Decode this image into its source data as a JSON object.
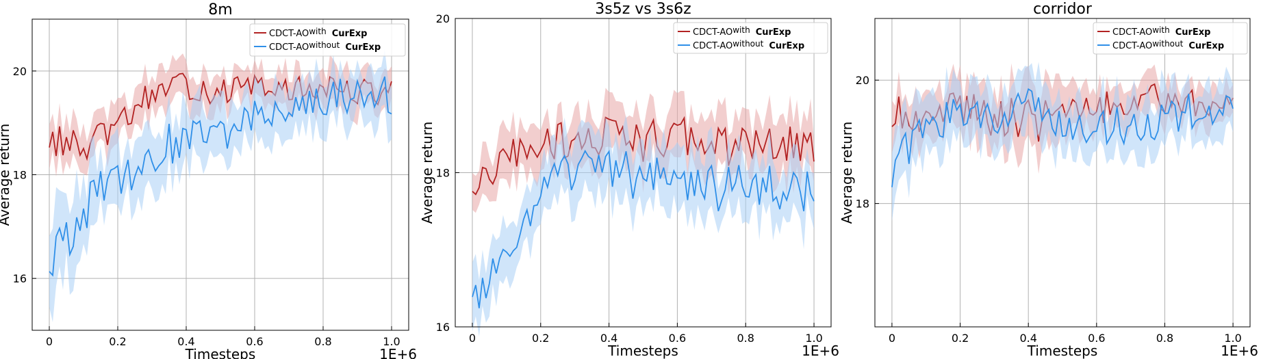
{
  "chart_data": [
    {
      "type": "line",
      "title": "8m",
      "xlabel": "Timesteps",
      "ylabel": "Average return",
      "x_multiplier_label": "1E+6",
      "xlim": [
        -0.05,
        1.05
      ],
      "ylim": [
        15.0,
        21.0
      ],
      "xticks": [
        0,
        0.2,
        0.4,
        0.6,
        0.8,
        1.0
      ],
      "xtick_labels": [
        "0",
        "0.2",
        "0.4",
        "0.6",
        "0.8",
        "1.0"
      ],
      "yticks": [
        16,
        18,
        20
      ],
      "ytick_labels": [
        "16",
        "18",
        "20"
      ],
      "grid": true,
      "legend_position": "top-right",
      "x": [
        0,
        0.1,
        0.2,
        0.3,
        0.4,
        0.5,
        0.6,
        0.7,
        0.8,
        0.9,
        1.0
      ],
      "series": [
        {
          "name": "CDCT-AOwith CurExp",
          "name_parts": [
            "CDCT-AO",
            "with",
            "CurExp"
          ],
          "color": "#b22222",
          "band_color": "#e8a5a5",
          "values": [
            18.7,
            18.5,
            18.9,
            19.6,
            19.7,
            19.6,
            19.7,
            19.6,
            19.7,
            19.6,
            19.6
          ],
          "band": [
            0.45,
            0.4,
            0.4,
            0.35,
            0.35,
            0.35,
            0.3,
            0.35,
            0.35,
            0.35,
            0.35
          ]
        },
        {
          "name": "CDCT-AOwithout CurExp",
          "name_parts": [
            "CDCT-AO",
            "without",
            "CurExp"
          ],
          "color": "#2f8fe8",
          "band_color": "#a9d0f5",
          "values": [
            16.4,
            17.3,
            17.9,
            18.4,
            18.7,
            18.7,
            19.2,
            19.2,
            19.5,
            19.6,
            19.5
          ],
          "band": [
            0.8,
            0.7,
            0.6,
            0.6,
            0.55,
            0.55,
            0.5,
            0.5,
            0.5,
            0.5,
            0.5
          ]
        }
      ]
    },
    {
      "type": "line",
      "title": "3s5z vs 3s6z",
      "xlabel": "Timesteps",
      "ylabel": "Average return",
      "x_multiplier_label": "1E+6",
      "xlim": [
        -0.05,
        1.05
      ],
      "ylim": [
        16.0,
        20.0
      ],
      "xticks": [
        0,
        0.2,
        0.4,
        0.6,
        0.8,
        1.0
      ],
      "xtick_labels": [
        "0",
        "0.2",
        "0.4",
        "0.6",
        "0.8",
        "1.0"
      ],
      "yticks": [
        16,
        18,
        20
      ],
      "ytick_labels": [
        "16",
        "18",
        "20"
      ],
      "grid": true,
      "legend_position": "top-right",
      "x": [
        0,
        0.1,
        0.2,
        0.3,
        0.4,
        0.5,
        0.6,
        0.7,
        0.8,
        0.9,
        1.0
      ],
      "series": [
        {
          "name": "CDCT-AOwith CurExp",
          "name_parts": [
            "CDCT-AO",
            "with",
            "CurExp"
          ],
          "color": "#b22222",
          "band_color": "#e8a5a5",
          "values": [
            17.7,
            18.2,
            18.4,
            18.4,
            18.5,
            18.4,
            18.5,
            18.3,
            18.4,
            18.4,
            18.3
          ],
          "band": [
            0.3,
            0.3,
            0.3,
            0.35,
            0.35,
            0.35,
            0.35,
            0.35,
            0.35,
            0.35,
            0.35
          ]
        },
        {
          "name": "CDCT-AOwithout CurExp",
          "name_parts": [
            "CDCT-AO",
            "without",
            "CurExp"
          ],
          "color": "#2f8fe8",
          "band_color": "#a9d0f5",
          "values": [
            16.3,
            16.9,
            17.8,
            18.0,
            18.1,
            17.9,
            17.9,
            17.8,
            17.8,
            17.8,
            17.7
          ],
          "band": [
            0.35,
            0.35,
            0.35,
            0.4,
            0.4,
            0.4,
            0.4,
            0.4,
            0.4,
            0.4,
            0.4
          ]
        }
      ]
    },
    {
      "type": "line",
      "title": "corridor",
      "xlabel": "Timesteps",
      "ylabel": "Average return",
      "x_multiplier_label": "1E+6",
      "xlim": [
        -0.05,
        1.05
      ],
      "ylim": [
        16.0,
        21.0
      ],
      "xticks": [
        0,
        0.2,
        0.4,
        0.6,
        0.8,
        1.0
      ],
      "xtick_labels": [
        "0",
        "0.2",
        "0.4",
        "0.6",
        "0.8",
        "1.0"
      ],
      "yticks": [
        18,
        20
      ],
      "ytick_labels": [
        "18",
        "20"
      ],
      "grid": true,
      "legend_position": "top-right",
      "x": [
        0,
        0.1,
        0.2,
        0.3,
        0.4,
        0.5,
        0.6,
        0.7,
        0.8,
        0.9,
        1.0
      ],
      "series": [
        {
          "name": "CDCT-AOwith CurExp",
          "name_parts": [
            "CDCT-AO",
            "with",
            "CurExp"
          ],
          "color": "#b22222",
          "band_color": "#e8a5a5",
          "values": [
            19.5,
            19.4,
            19.6,
            19.4,
            19.3,
            19.5,
            19.5,
            19.7,
            19.7,
            19.6,
            19.7
          ],
          "band": [
            0.35,
            0.35,
            0.4,
            0.45,
            0.55,
            0.45,
            0.35,
            0.35,
            0.3,
            0.3,
            0.3
          ]
        },
        {
          "name": "CDCT-AOwithout CurExp",
          "name_parts": [
            "CDCT-AO",
            "without",
            "CurExp"
          ],
          "color": "#2f8fe8",
          "band_color": "#a9d0f5",
          "values": [
            18.6,
            19.2,
            19.4,
            19.3,
            19.6,
            19.3,
            19.3,
            19.3,
            19.4,
            19.5,
            19.4
          ],
          "band": [
            0.5,
            0.5,
            0.45,
            0.45,
            0.45,
            0.45,
            0.45,
            0.45,
            0.45,
            0.45,
            0.45
          ]
        }
      ]
    }
  ]
}
